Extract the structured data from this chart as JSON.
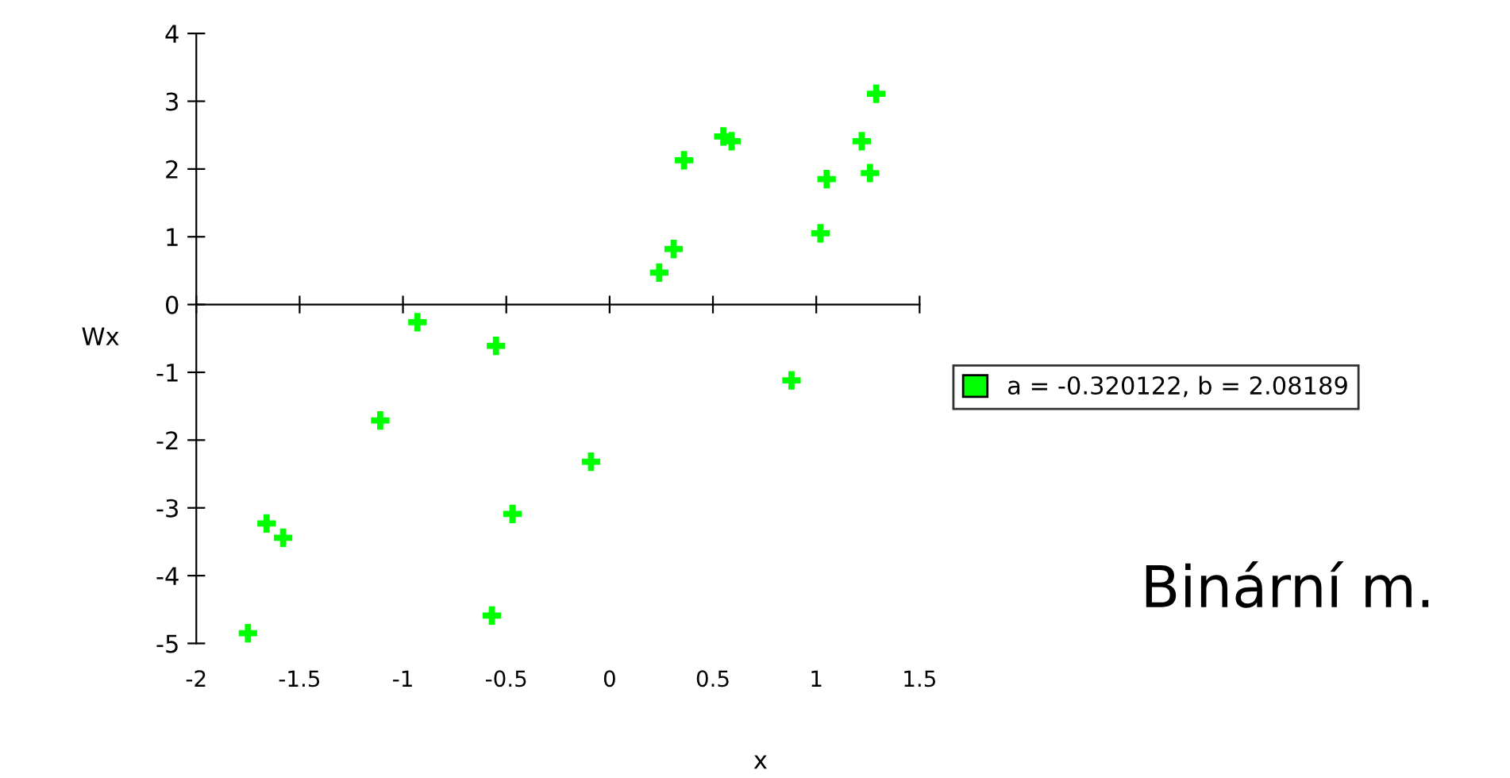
{
  "chart_data": {
    "type": "scatter",
    "xlabel": "x",
    "ylabel": "Wx",
    "legend": "right",
    "marker": "cross",
    "xlim": [
      -2,
      1.5
    ],
    "ylim": [
      -5,
      4
    ],
    "xticks": [
      -2,
      -1.5,
      -1,
      -0.5,
      0,
      0.5,
      1,
      1.5
    ],
    "yticks": [
      -5,
      -4,
      -3,
      -2,
      -1,
      0,
      1,
      2,
      3,
      4
    ],
    "series": [
      {
        "name": "a = -0.320122, b = 2.08189",
        "color": "#00ff00",
        "x": [
          -1.75,
          -1.66,
          -1.58,
          -1.11,
          -0.93,
          -0.55,
          -0.57,
          -0.47,
          -0.09,
          0.24,
          0.31,
          0.36,
          0.55,
          0.59,
          0.88,
          1.02,
          1.05,
          1.22,
          1.26,
          1.29
        ],
        "values": [
          -4.85,
          -3.23,
          -3.44,
          -1.71,
          -0.26,
          -0.61,
          -4.59,
          -3.09,
          -2.32,
          0.47,
          0.82,
          2.13,
          2.48,
          2.41,
          -1.12,
          1.05,
          1.85,
          2.41,
          1.94,
          3.11
        ]
      }
    ],
    "annotations": [
      "Binární m."
    ]
  }
}
